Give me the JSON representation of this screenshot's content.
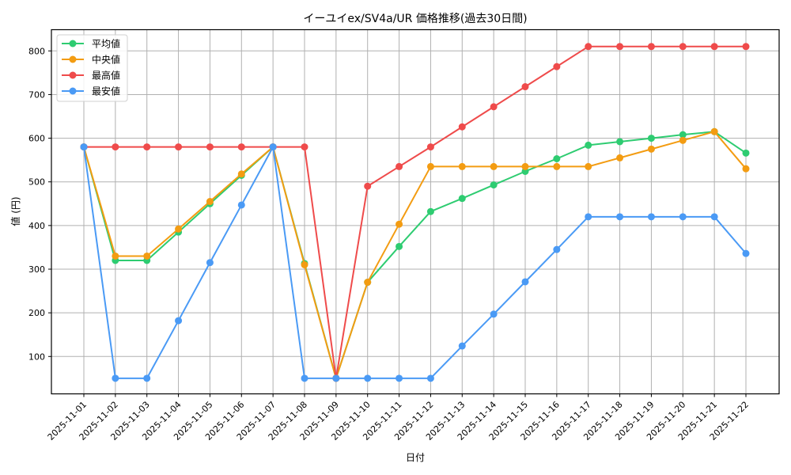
{
  "chart_data": {
    "type": "line",
    "title": "イーユイex/SV4a/UR 価格推移(過去30日間)",
    "xlabel": "日付",
    "ylabel": "値 (円)",
    "x": [
      "2025-11-01",
      "2025-11-02",
      "2025-11-03",
      "2025-11-04",
      "2025-11-05",
      "2025-11-06",
      "2025-11-07",
      "2025-11-08",
      "2025-11-09",
      "2025-11-10",
      "2025-11-11",
      "2025-11-12",
      "2025-11-13",
      "2025-11-14",
      "2025-11-15",
      "2025-11-16",
      "2025-11-17",
      "2025-11-18",
      "2025-11-19",
      "2025-11-20",
      "2025-11-21",
      "2025-11-22"
    ],
    "yticks": [
      100,
      200,
      300,
      400,
      500,
      600,
      700,
      800
    ],
    "ylim": [
      13,
      862
    ],
    "grid": true,
    "legend_position": "upper left",
    "series": [
      {
        "name": "平均値",
        "color": "#2ecc71",
        "values": [
          580,
          320,
          320,
          385,
          450,
          515,
          580,
          313,
          50,
          270,
          352,
          432,
          462,
          493,
          524,
          553,
          584,
          592,
          600,
          608,
          615,
          566
        ]
      },
      {
        "name": "中央値",
        "color": "#f39c12",
        "values": [
          580,
          330,
          330,
          392,
          455,
          518,
          580,
          310,
          50,
          270,
          403,
          535,
          535,
          535,
          535,
          535,
          535,
          555,
          575,
          595,
          615,
          530
        ]
      },
      {
        "name": "最高値",
        "color": "#ef4b4b",
        "values": [
          580,
          580,
          580,
          580,
          580,
          580,
          580,
          580,
          50,
          490,
          535,
          580,
          626,
          672,
          718,
          764,
          810,
          810,
          810,
          810,
          810,
          810
        ]
      },
      {
        "name": "最安値",
        "color": "#4a9af5",
        "values": [
          580,
          50,
          50,
          182,
          315,
          447,
          580,
          50,
          50,
          50,
          50,
          50,
          124,
          197,
          271,
          345,
          420,
          420,
          420,
          420,
          420,
          336
        ]
      }
    ]
  }
}
